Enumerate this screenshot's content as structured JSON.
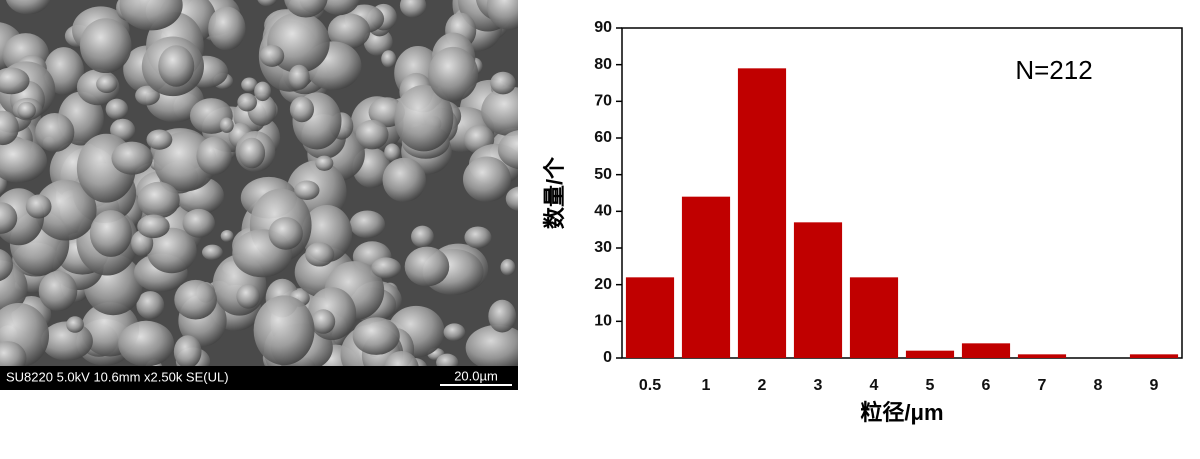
{
  "sem_image": {
    "info": "SU8220 5.0kV 10.6mm x2.50k SE(UL)",
    "scale": "20.0µm"
  },
  "chart_data": {
    "type": "bar",
    "categories": [
      "0.5",
      "1",
      "2",
      "3",
      "4",
      "5",
      "6",
      "7",
      "8",
      "9"
    ],
    "values": [
      22,
      44,
      79,
      37,
      22,
      2,
      4,
      1,
      0,
      1
    ],
    "color": "#c00000",
    "xlabel": "粒径/μm",
    "ylabel": "数量/个",
    "annotation": "N=212",
    "ylim": [
      0,
      90
    ],
    "yticks": [
      0,
      10,
      20,
      30,
      40,
      50,
      60,
      70,
      80,
      90
    ]
  }
}
